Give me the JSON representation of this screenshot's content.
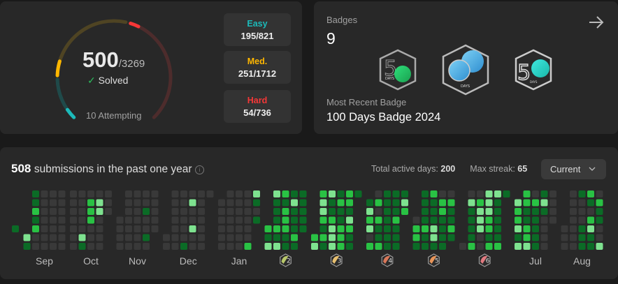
{
  "solved": {
    "count": "500",
    "total": "/3269",
    "label": "Solved",
    "attempting": "10 Attempting",
    "difficulties": [
      {
        "label": "Easy",
        "value": "195/821",
        "solved": 195,
        "total": 821,
        "color": "#1cbaba",
        "track": "#1f4a4a"
      },
      {
        "label": "Med.",
        "value": "251/1712",
        "solved": 251,
        "total": 1712,
        "color": "#ffb700",
        "track": "#4f4423"
      },
      {
        "label": "Hard",
        "value": "54/736",
        "solved": 54,
        "total": 736,
        "color": "#f63737",
        "track": "#4d2c2c"
      }
    ]
  },
  "badges": {
    "title": "Badges",
    "count": "9",
    "recent_label": "Most Recent Badge",
    "recent_name": "100 Days Badge 2024",
    "items": [
      {
        "icon": "50-days-badge-green",
        "text": "DAYS"
      },
      {
        "icon": "100-days-badge-blue",
        "text": "DAYS"
      },
      {
        "icon": "50-days-badge-cyan",
        "text": "DAYS"
      }
    ]
  },
  "submissions": {
    "count": "508",
    "text": "submissions in the past one year",
    "active_days_label": "Total active days:",
    "active_days": "200",
    "max_streak_label": "Max streak:",
    "max_streak": "65",
    "dropdown": "Current"
  },
  "chart_data": {
    "type": "heatmap",
    "level_colors": [
      "#393939",
      "#0b6b26",
      "#29c244",
      "#7ee28f"
    ],
    "months": [
      {
        "label": "",
        "weeks": [
          "....1.."
        ]
      },
      {
        "label": "Sep",
        "weeks": [
          ".....31",
          "1121200",
          "0000000",
          "0000000",
          "0000000"
        ]
      },
      {
        "label": "Oct",
        "weeks": [
          "0000000",
          "0000031",
          "0222000",
          "0330000",
          "000...."
        ]
      },
      {
        "label": "Nov",
        "weeks": [
          "...0000",
          "0000000",
          "0000000",
          "0010010",
          "00000.."
        ]
      },
      {
        "label": "Dec",
        "weeks": [
          ".....00",
          "0000000",
          "0000001",
          "0300300",
          "0000000",
          "0......"
        ]
      },
      {
        "label": "Jan",
        "weeks": [
          ".000000",
          "0000000",
          "0000000",
          "0000002",
          "3101..."
        ]
      },
      {
        "label": "2",
        "badge": "#b9c86a",
        "weeks": [
          "....213",
          "3111213",
          "2122211",
          "1311121",
          "11111.."
        ]
      },
      {
        "label": "3",
        "badge": "#e8c070",
        "weeks": [
          ".....23",
          "2332121",
          "3112333",
          "1211222",
          "2213211",
          "1......"
        ]
      },
      {
        "label": "4",
        "badge": "#d9785a",
        "weeks": [
          ".132302",
          "0202112",
          "1111111",
          "1112111",
          "132...."
        ]
      },
      {
        "label": "5",
        "badge": "#e8955a",
        "weeks": [
          "...0221",
          "1111211",
          "2111331",
          "0221111",
          "021121."
        ]
      },
      {
        "label": "6",
        "badge": "#e07a80",
        "weeks": [
          "......0",
          "0311112",
          "0233300",
          "3332212",
          "3111112",
          "1......"
        ]
      },
      {
        "label": "Jul",
        "weeks": [
          ".322313",
          "2211223",
          "0211111",
          "1310000",
          "0000..."
        ]
      },
      {
        "label": "Aug",
        "weeks": [
          "....000",
          "0000000",
          "1000111",
          "2102311",
          "0211003"
        ]
      }
    ]
  }
}
